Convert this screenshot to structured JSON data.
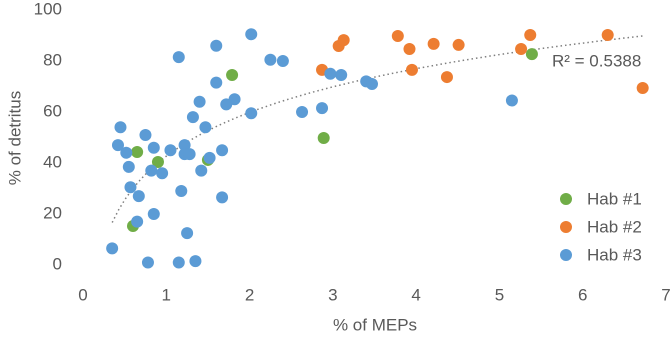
{
  "chart_data": {
    "type": "scatter",
    "x_label": "% of MEPs",
    "y_label": "% of detritus",
    "xlim": [
      0,
      7
    ],
    "ylim": [
      0,
      100
    ],
    "xticks": [
      0,
      1,
      2,
      3,
      4,
      5,
      6,
      7
    ],
    "yticks": [
      0,
      20,
      40,
      60,
      80,
      100
    ],
    "grid": false,
    "legend": "lower right",
    "trendline": "logarithmic",
    "annotation": "R² = 0.5388",
    "series": [
      {
        "name": "Hab #1",
        "color": "#70ad47",
        "x": [
          0.65,
          0.9,
          1.79,
          1.5,
          2.89,
          5.39,
          0.6
        ],
        "values": [
          44.3,
          40.4,
          74.5,
          41.2,
          49.8,
          82.7,
          15.3
        ]
      },
      {
        "name": "Hab #2",
        "color": "#ed7d31",
        "x": [
          2.87,
          3.07,
          3.13,
          3.78,
          3.92,
          3.95,
          4.21,
          4.37,
          4.51,
          5.26,
          5.37,
          6.3,
          6.72
        ],
        "values": [
          76.5,
          85.9,
          88.2,
          89.8,
          84.7,
          76.5,
          86.7,
          73.7,
          86.3,
          84.7,
          90.2,
          90.2,
          69.4
        ]
      },
      {
        "name": "Hab #3",
        "color": "#5b9bd5",
        "x": [
          0.35,
          0.42,
          0.45,
          0.52,
          0.55,
          0.57,
          0.65,
          0.67,
          0.75,
          0.78,
          0.82,
          0.85,
          0.85,
          0.95,
          1.05,
          1.15,
          1.15,
          1.18,
          1.22,
          1.22,
          1.25,
          1.28,
          1.32,
          1.35,
          1.4,
          1.42,
          1.47,
          1.52,
          1.6,
          1.6,
          1.67,
          1.67,
          1.72,
          1.82,
          2.02,
          2.02,
          2.25,
          2.4,
          2.63,
          2.87,
          2.97,
          3.1,
          3.4,
          3.47,
          5.15
        ],
        "values": [
          6.5,
          47,
          54,
          44,
          38.5,
          30.5,
          17,
          27,
          51,
          1,
          37,
          46,
          20,
          36,
          45,
          81.5,
          1,
          29,
          47,
          43.5,
          12.5,
          43.5,
          58,
          1.5,
          64,
          37,
          54,
          42,
          86,
          71.5,
          45,
          26.5,
          63,
          65,
          59.5,
          90.5,
          80.5,
          80,
          60,
          61.5,
          75,
          74.5,
          72,
          71,
          64.5
        ]
      }
    ]
  }
}
